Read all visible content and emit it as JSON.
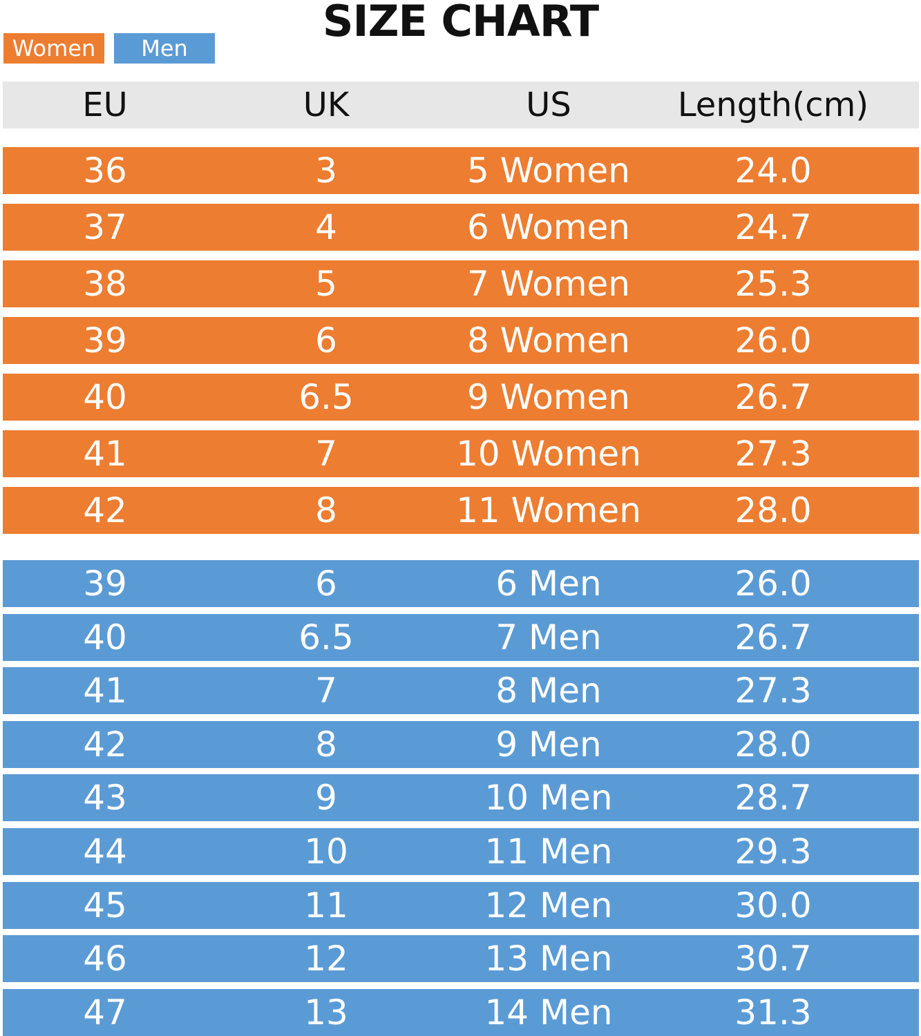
{
  "title": "SIZE CHART",
  "legend": {
    "women": "Women",
    "men": "Men"
  },
  "colors": {
    "women": "#ED7D31",
    "men": "#5B9BD5",
    "header": "#E7E7E7"
  },
  "chart_data": {
    "type": "table",
    "title": "SIZE CHART",
    "columns": [
      "EU",
      "UK",
      "US",
      "Length(cm)"
    ],
    "groups": [
      {
        "name": "Women",
        "rows": [
          [
            "36",
            "3",
            "5 Women",
            "24.0"
          ],
          [
            "37",
            "4",
            "6 Women",
            "24.7"
          ],
          [
            "38",
            "5",
            "7 Women",
            "25.3"
          ],
          [
            "39",
            "6",
            "8 Women",
            "26.0"
          ],
          [
            "40",
            "6.5",
            "9 Women",
            "26.7"
          ],
          [
            "41",
            "7",
            "10 Women",
            "27.3"
          ],
          [
            "42",
            "8",
            "11 Women",
            "28.0"
          ]
        ]
      },
      {
        "name": "Men",
        "rows": [
          [
            "39",
            "6",
            "6 Men",
            "26.0"
          ],
          [
            "40",
            "6.5",
            "7 Men",
            "26.7"
          ],
          [
            "41",
            "7",
            "8 Men",
            "27.3"
          ],
          [
            "42",
            "8",
            "9 Men",
            "28.0"
          ],
          [
            "43",
            "9",
            "10 Men",
            "28.7"
          ],
          [
            "44",
            "10",
            "11 Men",
            "29.3"
          ],
          [
            "45",
            "11",
            "12 Men",
            "30.0"
          ],
          [
            "46",
            "12",
            "13 Men",
            "30.7"
          ],
          [
            "47",
            "13",
            "14 Men",
            "31.3"
          ]
        ]
      }
    ]
  }
}
